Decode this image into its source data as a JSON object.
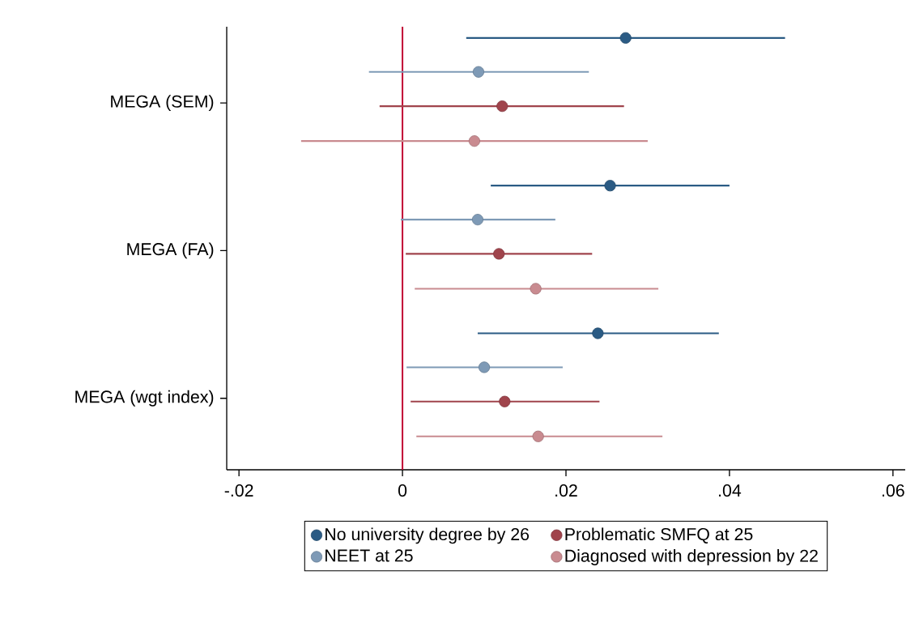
{
  "chart_data": {
    "type": "scatter",
    "orientation": "horizontal",
    "categories": [
      "MEGA (SEM)",
      "MEGA (FA)",
      "MEGA (wgt index)"
    ],
    "series": [
      {
        "name": "No university degree by 26",
        "color": "#2b5b84",
        "values": [
          0.0273,
          0.0254,
          0.0239
        ],
        "errors": [
          [
            0.0078,
            0.0468
          ],
          [
            0.0108,
            0.04
          ],
          [
            0.0092,
            0.0387
          ]
        ]
      },
      {
        "name": "NEET at 25",
        "color": "#7e9ab6",
        "values": [
          0.0093,
          0.0092,
          0.01
        ],
        "errors": [
          [
            -0.0041,
            0.0228
          ],
          [
            -0.0002,
            0.0187
          ],
          [
            0.0005,
            0.0196
          ]
        ]
      },
      {
        "name": "Problematic SMFQ at 25",
        "color": "#a0444c",
        "values": [
          0.0122,
          0.0118,
          0.0125
        ],
        "errors": [
          [
            -0.0028,
            0.0271
          ],
          [
            0.0004,
            0.0232
          ],
          [
            0.001,
            0.0241
          ]
        ]
      },
      {
        "name": "Diagnosed with depression by 22",
        "color": "#c98b90",
        "values": [
          0.0088,
          0.0163,
          0.0166
        ],
        "errors": [
          [
            -0.0124,
            0.03
          ],
          [
            0.0015,
            0.0313
          ],
          [
            0.0017,
            0.0318
          ]
        ]
      }
    ],
    "xlim": [
      -0.0215,
      0.0615
    ],
    "xticks": [
      {
        "value": -0.02,
        "label": "-.02"
      },
      0,
      {
        "value": 0.02,
        "label": ".02"
      },
      {
        "value": 0.04,
        "label": ".04"
      },
      {
        "value": 0.06,
        "label": ".06"
      }
    ],
    "ref_lines": [
      {
        "axis": "x",
        "value": 0,
        "color": "#c10534"
      }
    ],
    "legend": "bottom"
  }
}
